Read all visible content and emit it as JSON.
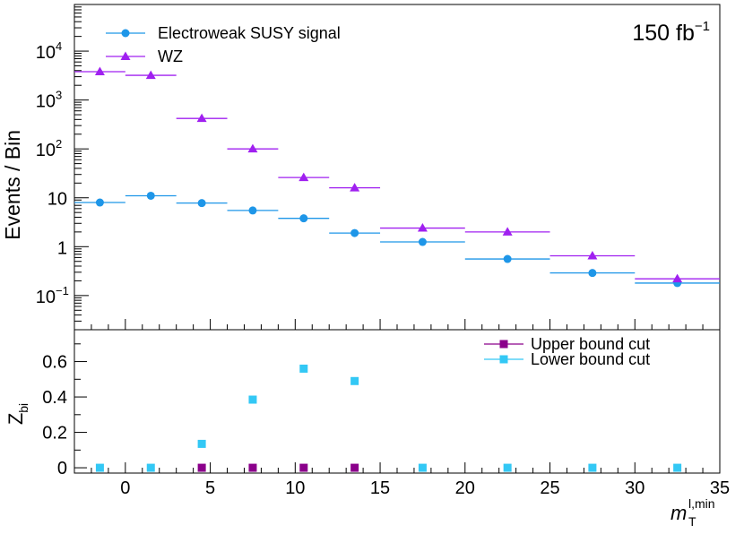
{
  "chart_data": [
    {
      "type": "scatter",
      "ylabel": "Events / Bin",
      "yscale": "log",
      "xlim": [
        -3,
        35
      ],
      "ylim": [
        0.02,
        90000
      ],
      "annotation": "150 fb",
      "annotation_sup": "−1",
      "legend_position": "top-left",
      "x_bins": [
        [
          -3,
          0
        ],
        [
          0,
          3
        ],
        [
          3,
          6
        ],
        [
          6,
          9
        ],
        [
          9,
          12
        ],
        [
          12,
          15
        ],
        [
          15,
          20
        ],
        [
          20,
          25
        ],
        [
          25,
          30
        ],
        [
          30,
          35
        ]
      ],
      "yticks": [
        {
          "v": 0.1,
          "base": "10",
          "sup": "−1"
        },
        {
          "v": 1,
          "base": "1",
          "sup": ""
        },
        {
          "v": 10,
          "base": "10",
          "sup": ""
        },
        {
          "v": 100,
          "base": "10",
          "sup": "2"
        },
        {
          "v": 1000,
          "base": "10",
          "sup": "3"
        },
        {
          "v": 10000,
          "base": "10",
          "sup": "4"
        }
      ],
      "series": [
        {
          "name": "Electroweak SUSY signal",
          "color": "#1e96e8",
          "marker": "circle",
          "values": [
            8.0,
            11.0,
            7.8,
            5.5,
            3.8,
            1.9,
            1.25,
            0.56,
            0.29,
            0.18
          ]
        },
        {
          "name": "WZ",
          "color": "#a020f0",
          "marker": "triangle",
          "values": [
            3800,
            3200,
            420,
            100,
            26,
            16,
            2.4,
            2.0,
            0.65,
            0.22
          ]
        }
      ]
    },
    {
      "type": "scatter",
      "ylabel": "Z",
      "ylabel_sub": "bi",
      "xlabel": "m",
      "xlabel_sub": "T",
      "xlabel_sup": "l,min",
      "xlim": [
        -3,
        35
      ],
      "ylim": [
        -0.03,
        0.78
      ],
      "xticks": [
        0,
        5,
        10,
        15,
        20,
        25,
        30,
        35
      ],
      "yticks": [
        "0",
        "0.2",
        "0.4",
        "0.6"
      ],
      "legend_position": "top-right",
      "series": [
        {
          "name": "Upper bound cut",
          "color": "#8b008b",
          "marker": "square",
          "x": [
            4.5,
            7.5,
            10.5,
            13.5
          ],
          "y": [
            0,
            0,
            0,
            0
          ]
        },
        {
          "name": "Lower bound cut",
          "color": "#33c8f5",
          "marker": "square",
          "x": [
            -1.5,
            1.5,
            4.5,
            7.5,
            10.5,
            13.5,
            17.5,
            22.5,
            27.5,
            32.5
          ],
          "y": [
            0,
            0,
            0.135,
            0.385,
            0.56,
            0.49,
            0,
            0,
            0,
            0
          ]
        }
      ]
    }
  ]
}
